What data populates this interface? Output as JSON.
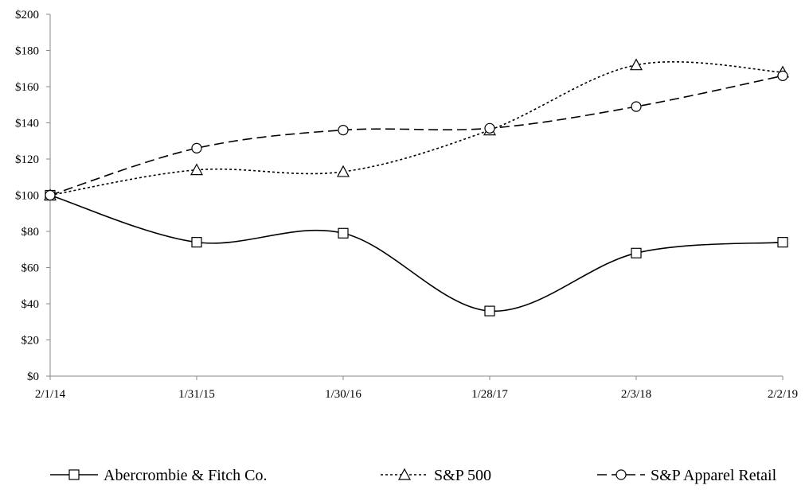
{
  "chart_data": {
    "type": "line",
    "title": "",
    "xlabel": "",
    "ylabel": "",
    "categories": [
      "2/1/14",
      "1/31/15",
      "1/30/16",
      "1/28/17",
      "2/3/18",
      "2/2/19"
    ],
    "ylim": [
      0,
      200
    ],
    "yticks": [
      "$0",
      "$20",
      "$40",
      "$60",
      "$80",
      "$100",
      "$120",
      "$140",
      "$160",
      "$180",
      "$200"
    ],
    "legend_position": "bottom",
    "series": [
      {
        "name": "Abercrombie & Fitch Co.",
        "marker": "square",
        "dash": "solid",
        "color": "#000000",
        "values": [
          100,
          74,
          79,
          36,
          68,
          74
        ]
      },
      {
        "name": "S&P 500",
        "marker": "triangle",
        "dash": "dotted",
        "color": "#000000",
        "values": [
          100,
          114,
          113,
          136,
          172,
          168
        ]
      },
      {
        "name": "S&P Apparel Retail",
        "marker": "circle",
        "dash": "dashed",
        "color": "#000000",
        "values": [
          100,
          126,
          136,
          137,
          149,
          166
        ]
      }
    ]
  }
}
